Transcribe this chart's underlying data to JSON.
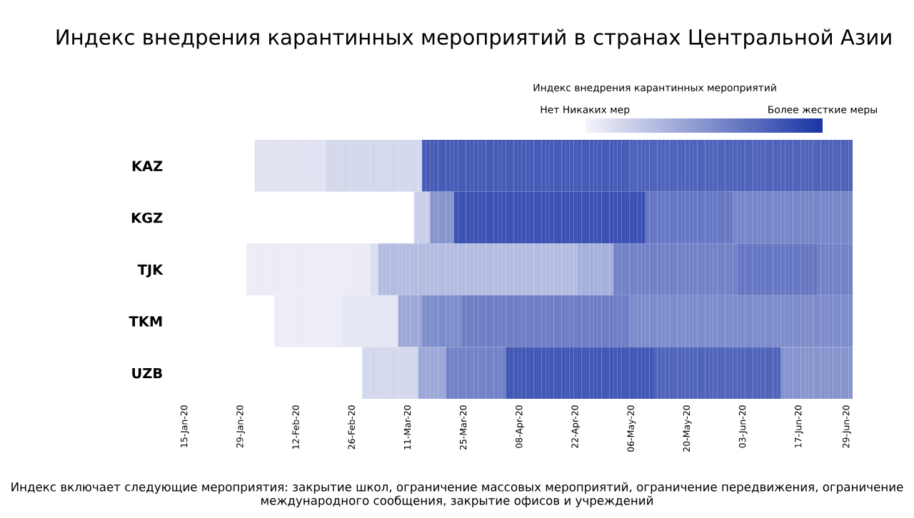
{
  "chart_data": {
    "type": "heatmap",
    "title": "Индекс внедрения карантинных мероприятий в странах Центральной Азии",
    "clabel": "Индекс внедрения карантинных мероприятий",
    "clim": [
      0,
      100
    ],
    "cticks": [
      {
        "value": 0,
        "label": "Нет Никаких мер"
      },
      {
        "value": 100,
        "label": "Более жесткие меры"
      }
    ],
    "colors": [
      "#f5f5fa",
      "#1a35a5"
    ],
    "categories": [
      "15-Jan-20",
      null,
      null,
      null,
      null,
      null,
      null,
      null,
      null,
      null,
      null,
      null,
      null,
      null,
      "29-Jan-20",
      null,
      null,
      null,
      null,
      null,
      null,
      null,
      null,
      null,
      null,
      null,
      null,
      null,
      "12-Feb-20",
      null,
      null,
      null,
      null,
      null,
      null,
      null,
      null,
      null,
      null,
      null,
      null,
      null,
      "26-Feb-20",
      null,
      null,
      null,
      null,
      null,
      null,
      null,
      null,
      null,
      null,
      null,
      null,
      null,
      "11-Mar-20",
      null,
      null,
      null,
      null,
      null,
      null,
      null,
      null,
      null,
      null,
      null,
      null,
      null,
      "25-Mar-20",
      null,
      null,
      null,
      null,
      null,
      null,
      null,
      null,
      null,
      null,
      null,
      null,
      null,
      "08-Apr-20",
      null,
      null,
      null,
      null,
      null,
      null,
      null,
      null,
      null,
      null,
      null,
      null,
      null,
      "22-Apr-20",
      null,
      null,
      null,
      null,
      null,
      null,
      null,
      null,
      null,
      null,
      null,
      null,
      null,
      "06-May-20",
      null,
      null,
      null,
      null,
      null,
      null,
      null,
      null,
      null,
      null,
      null,
      null,
      null,
      "20-May-20",
      null,
      null,
      null,
      null,
      null,
      null,
      null,
      null,
      null,
      null,
      null,
      null,
      null,
      "03-Jun-20",
      null,
      null,
      null,
      null,
      null,
      null,
      null,
      null,
      null,
      null,
      null,
      null,
      null,
      "17-Jun-20",
      null,
      null,
      null,
      null,
      null,
      null,
      null,
      null,
      null,
      null,
      null,
      "29-Jun-20",
      null
    ],
    "y_categories": [
      "KAZ",
      "KGZ",
      "TJK",
      "TKM",
      "UZB"
    ],
    "cells": [
      [
        null,
        null,
        null,
        null,
        null,
        null,
        null,
        null,
        null,
        null,
        null,
        null,
        null,
        null,
        null,
        null,
        null,
        null,
        10,
        10,
        10,
        10,
        10,
        10,
        10,
        10,
        10,
        10,
        10,
        10,
        10,
        10,
        10,
        10,
        10,
        10,
        15,
        15,
        15,
        15,
        15,
        15,
        15,
        15,
        15,
        15,
        15,
        15,
        15,
        15,
        15,
        15,
        15,
        15,
        15,
        15,
        15,
        15,
        15,
        15,
        80,
        80,
        80,
        80,
        80,
        80,
        80,
        80,
        80,
        80,
        80,
        80,
        80,
        80,
        80,
        80,
        80,
        80,
        80,
        80,
        80,
        80,
        80,
        80,
        80,
        80,
        80,
        80,
        80,
        80,
        80,
        80,
        80,
        80,
        80,
        80,
        80,
        80,
        80,
        80,
        80,
        80,
        80,
        80,
        80,
        80,
        80,
        80,
        80,
        80,
        80,
        80,
        76,
        76,
        76,
        76,
        76,
        76,
        76,
        76,
        76,
        76,
        76,
        76,
        76,
        76,
        76,
        76,
        76,
        76,
        76,
        76,
        76,
        76,
        76,
        76,
        76,
        76,
        76,
        76,
        76,
        76,
        76,
        76,
        76,
        76,
        76,
        76,
        76,
        76,
        76,
        76,
        76,
        76,
        76,
        76,
        76,
        76,
        76,
        76,
        76,
        76,
        76,
        76,
        76,
        76,
        76,
        76
      ],
      [
        null,
        null,
        null,
        null,
        null,
        null,
        null,
        null,
        null,
        null,
        null,
        null,
        null,
        null,
        null,
        null,
        null,
        null,
        null,
        null,
        null,
        null,
        null,
        null,
        null,
        null,
        null,
        null,
        null,
        null,
        null,
        null,
        null,
        null,
        null,
        null,
        null,
        null,
        null,
        null,
        null,
        null,
        null,
        null,
        null,
        null,
        null,
        null,
        null,
        null,
        null,
        null,
        null,
        null,
        null,
        null,
        null,
        null,
        20,
        20,
        20,
        20,
        50,
        50,
        50,
        50,
        50,
        50,
        85,
        85,
        85,
        85,
        85,
        85,
        85,
        85,
        85,
        85,
        85,
        85,
        85,
        85,
        85,
        85,
        85,
        85,
        85,
        85,
        85,
        85,
        85,
        85,
        85,
        85,
        85,
        85,
        85,
        85,
        85,
        85,
        85,
        85,
        85,
        85,
        85,
        85,
        85,
        85,
        85,
        85,
        85,
        85,
        85,
        85,
        85,
        85,
        65,
        65,
        65,
        65,
        65,
        65,
        65,
        65,
        65,
        65,
        65,
        65,
        65,
        65,
        65,
        65,
        65,
        65,
        65,
        65,
        65,
        65,
        58,
        58,
        58,
        58,
        58,
        58,
        58,
        58,
        58,
        58,
        58,
        58,
        58,
        58,
        58,
        58,
        58,
        58,
        58,
        58,
        58,
        58,
        58,
        58,
        58,
        58,
        58,
        58,
        58,
        58
      ],
      [
        null,
        null,
        null,
        null,
        null,
        null,
        null,
        null,
        null,
        null,
        null,
        null,
        null,
        null,
        null,
        null,
        5,
        5,
        5,
        5,
        5,
        5,
        5,
        5,
        5,
        5,
        5,
        5,
        5,
        5,
        5,
        5,
        5,
        5,
        5,
        5,
        5,
        5,
        5,
        5,
        5,
        5,
        5,
        5,
        5,
        5,
        5,
        12,
        12,
        30,
        30,
        30,
        30,
        30,
        30,
        30,
        30,
        30,
        30,
        30,
        30,
        30,
        30,
        30,
        30,
        30,
        30,
        30,
        30,
        30,
        30,
        30,
        30,
        30,
        30,
        30,
        30,
        30,
        30,
        30,
        30,
        30,
        30,
        30,
        30,
        30,
        30,
        30,
        30,
        30,
        30,
        30,
        30,
        30,
        30,
        30,
        30,
        30,
        30,
        36,
        36,
        36,
        36,
        36,
        36,
        36,
        36,
        36,
        60,
        60,
        60,
        60,
        60,
        60,
        60,
        60,
        60,
        60,
        60,
        60,
        60,
        60,
        60,
        60,
        60,
        60,
        60,
        60,
        60,
        60,
        60,
        60,
        60,
        60,
        60,
        60,
        60,
        60,
        60,
        66,
        66,
        66,
        66,
        66,
        66,
        66,
        66,
        66,
        66,
        66,
        66,
        66,
        66,
        66,
        66,
        66,
        66,
        66,
        66,
        60,
        60,
        60,
        60,
        60,
        60,
        60,
        60,
        60
      ],
      [
        null,
        null,
        null,
        null,
        null,
        null,
        null,
        null,
        null,
        null,
        null,
        null,
        null,
        null,
        null,
        null,
        null,
        null,
        null,
        null,
        null,
        null,
        null,
        5,
        5,
        5,
        5,
        5,
        5,
        5,
        5,
        5,
        5,
        5,
        5,
        5,
        5,
        5,
        5,
        5,
        8,
        8,
        8,
        8,
        8,
        8,
        8,
        8,
        8,
        8,
        8,
        8,
        8,
        8,
        40,
        40,
        40,
        40,
        40,
        40,
        55,
        55,
        55,
        55,
        55,
        55,
        55,
        55,
        55,
        55,
        62,
        62,
        62,
        62,
        62,
        62,
        62,
        62,
        62,
        62,
        62,
        62,
        62,
        62,
        62,
        62,
        62,
        62,
        62,
        62,
        62,
        62,
        62,
        62,
        62,
        62,
        62,
        62,
        62,
        62,
        62,
        62,
        62,
        62,
        62,
        62,
        62,
        62,
        62,
        62,
        62,
        62,
        55,
        55,
        55,
        55,
        55,
        55,
        55,
        55,
        55,
        55,
        55,
        55,
        55,
        55,
        55,
        55,
        55,
        55,
        55,
        55,
        55,
        55,
        55,
        55,
        55,
        55,
        55,
        55,
        55,
        55,
        55,
        55,
        55,
        55,
        55,
        55,
        55,
        55,
        55,
        55,
        55,
        55,
        55,
        55,
        55,
        55,
        55,
        55,
        55,
        55,
        55,
        55,
        55,
        55,
        55,
        55
      ],
      [
        null,
        null,
        null,
        null,
        null,
        null,
        null,
        null,
        null,
        null,
        null,
        null,
        null,
        null,
        null,
        null,
        null,
        null,
        null,
        null,
        null,
        null,
        null,
        null,
        null,
        null,
        null,
        null,
        null,
        null,
        null,
        null,
        null,
        null,
        null,
        null,
        null,
        null,
        null,
        null,
        null,
        null,
        null,
        null,
        null,
        15,
        15,
        15,
        15,
        15,
        15,
        15,
        15,
        15,
        15,
        15,
        15,
        15,
        15,
        40,
        40,
        40,
        40,
        40,
        40,
        40,
        60,
        60,
        60,
        60,
        60,
        60,
        60,
        60,
        60,
        60,
        60,
        60,
        60,
        60,
        60,
        82,
        82,
        82,
        82,
        82,
        82,
        82,
        82,
        82,
        82,
        82,
        82,
        82,
        82,
        82,
        82,
        82,
        82,
        82,
        82,
        82,
        82,
        82,
        82,
        82,
        82,
        82,
        82,
        82,
        82,
        82,
        82,
        82,
        82,
        82,
        82,
        82,
        75,
        75,
        75,
        75,
        75,
        75,
        75,
        75,
        75,
        75,
        75,
        75,
        75,
        75,
        75,
        75,
        75,
        75,
        75,
        75,
        75,
        75,
        75,
        75,
        75,
        75,
        75,
        75,
        75,
        75,
        75,
        75,
        50,
        50,
        50,
        50,
        50,
        50,
        50,
        50,
        50,
        50,
        50,
        50,
        50,
        50,
        50,
        50,
        50,
        50
      ]
    ],
    "annotations": [
      "Индекс включает следующие мероприятия: закрытие школ, ограничение массовых мероприятий, ограничение передвижения, ограничение международного сообщения, закрытие офисов и учреждений"
    ]
  }
}
